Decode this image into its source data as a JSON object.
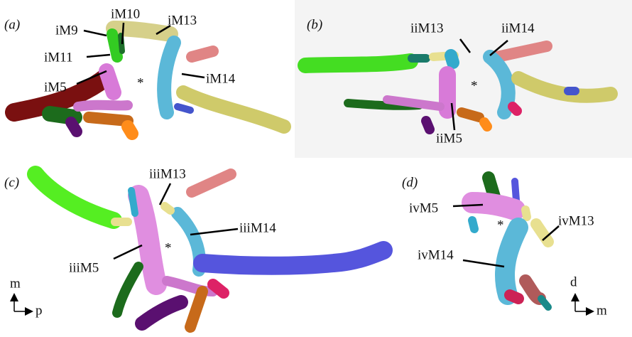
{
  "panels": [
    {
      "letter": "(a)",
      "asterisk": "*",
      "labels": [
        "iM9",
        "iM10",
        "iM11",
        "iM5",
        "iM13",
        "iM14"
      ]
    },
    {
      "letter": "(b)",
      "asterisk": "*",
      "labels": [
        "iiM13",
        "iiM14",
        "iiM5"
      ]
    },
    {
      "letter": "(c)",
      "asterisk": "*",
      "labels": [
        "iiiM13",
        "iiiM14",
        "iiiM5"
      ],
      "orientation": {
        "vertical": "m",
        "horizontal": "p"
      }
    },
    {
      "letter": "(d)",
      "asterisk": "*",
      "labels": [
        "ivM5",
        "ivM13",
        "ivM14"
      ],
      "orientation": {
        "vertical": "d",
        "horizontal": "m"
      }
    }
  ]
}
